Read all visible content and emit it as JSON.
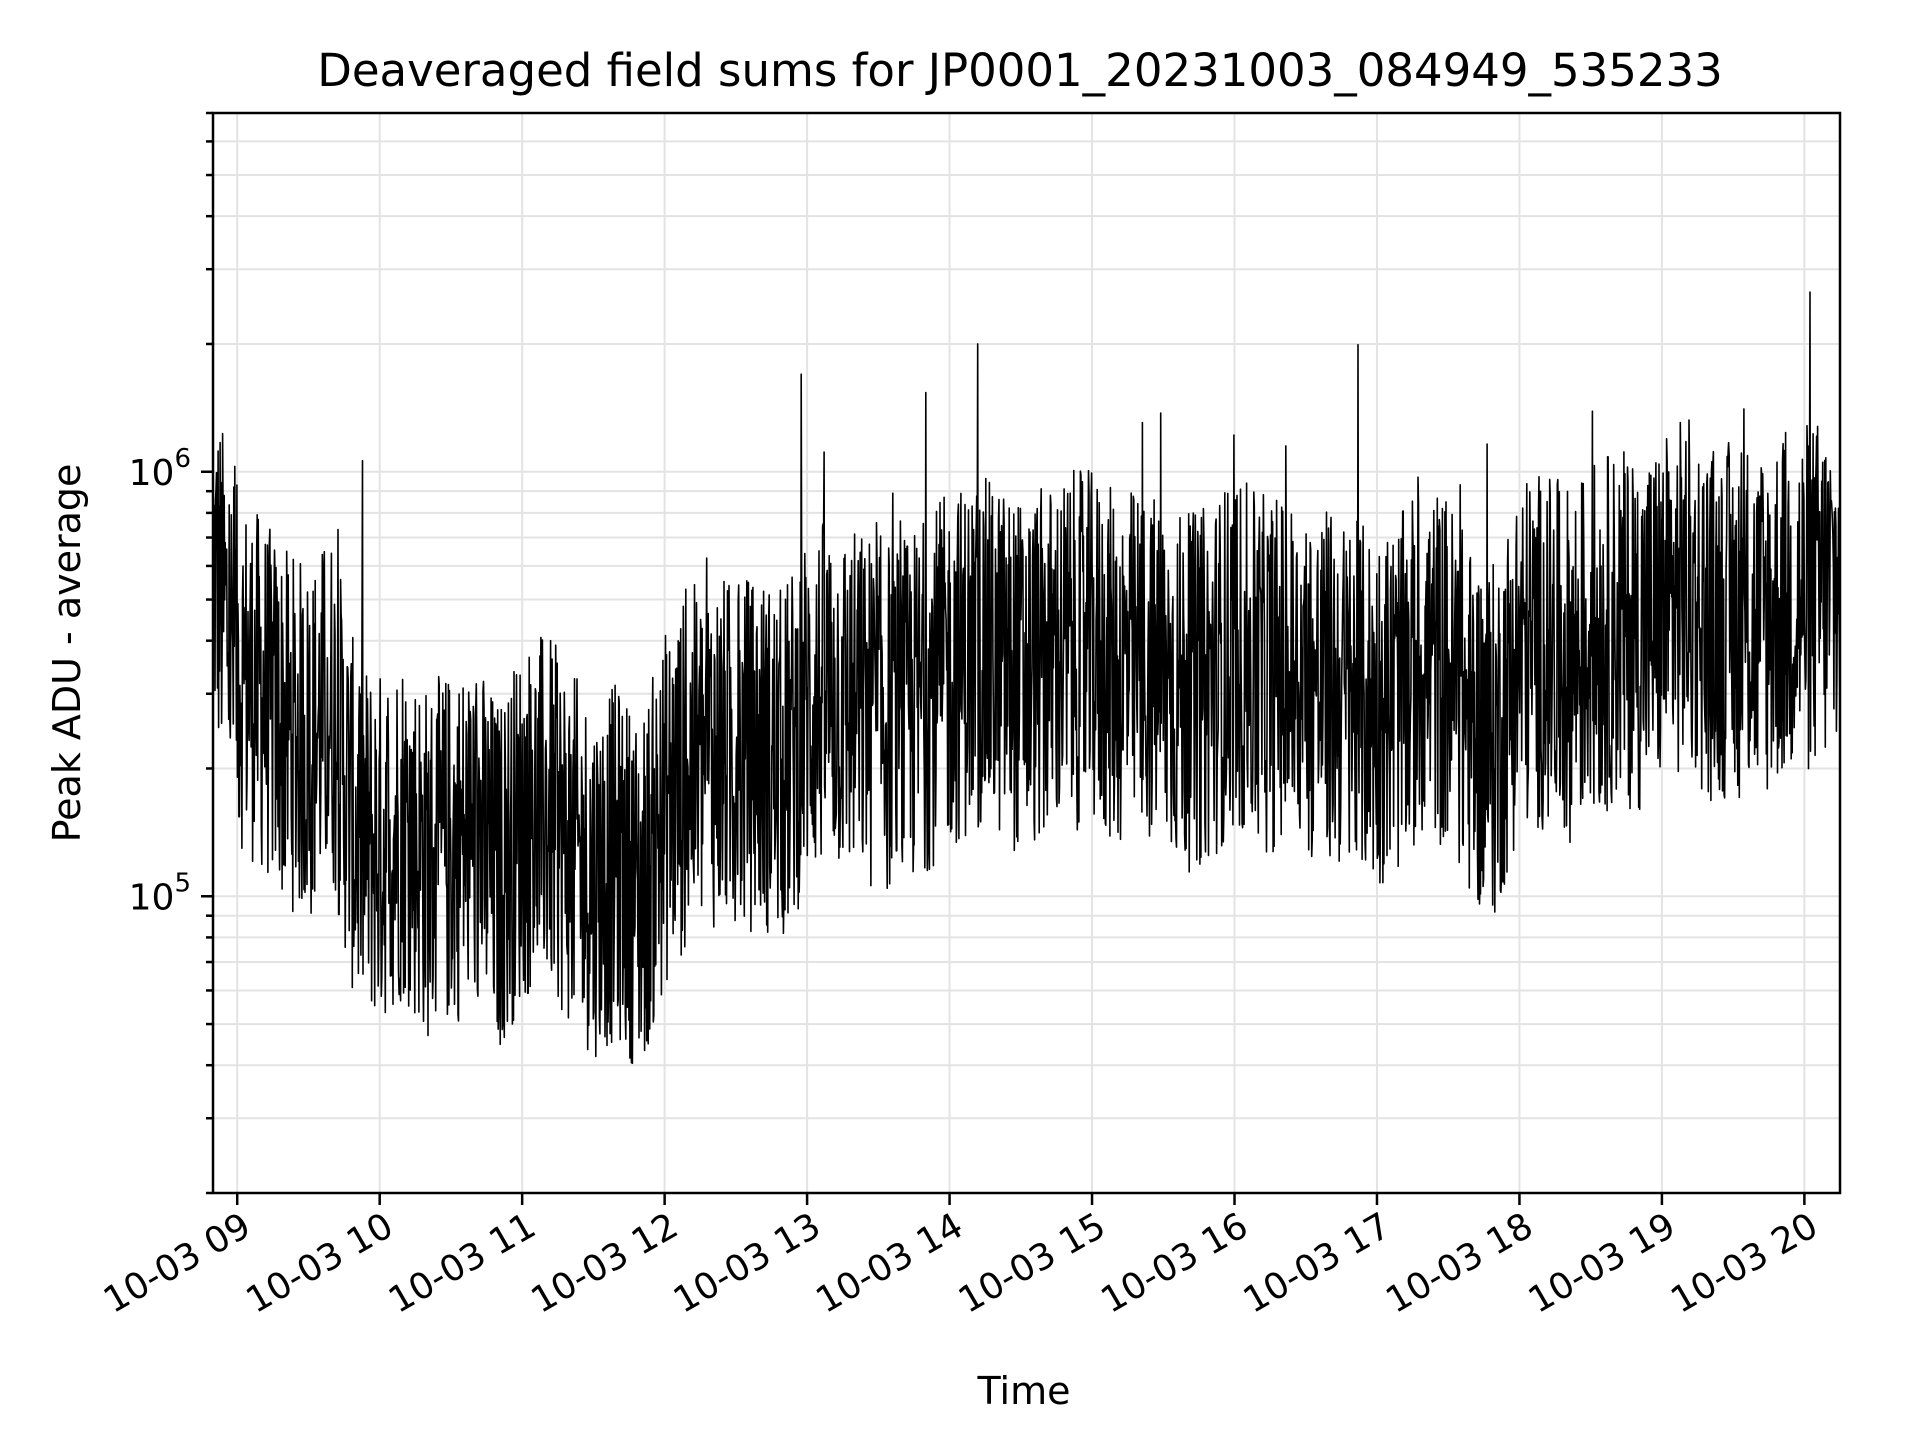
{
  "chart_data": {
    "type": "line",
    "title": "Deaveraged field sums for JP0001_20231003_084949_535233",
    "xlabel": "Time",
    "ylabel": "Peak ADU - average",
    "yscale": "log",
    "ylim": [
      20000,
      7000000
    ],
    "xlim_hours": [
      8.83,
      20.25
    ],
    "x_ticks": [
      "10-03 09",
      "10-03 10",
      "10-03 11",
      "10-03 12",
      "10-03 13",
      "10-03 14",
      "10-03 15",
      "10-03 16",
      "10-03 17",
      "10-03 18",
      "10-03 19",
      "10-03 20"
    ],
    "y_ticks": [
      {
        "value": 100000,
        "base": "10",
        "exp": "5"
      },
      {
        "value": 1000000,
        "base": "10",
        "exp": "6"
      }
    ],
    "grid": true,
    "legend": "none",
    "color": "#000000",
    "series": [
      {
        "x": [
          "08:50",
          "09:00",
          "09:10",
          "09:20",
          "09:30",
          "09:40",
          "09:50",
          "10:00",
          "10:10",
          "10:20",
          "10:30",
          "10:40",
          "10:50",
          "11:00",
          "11:10",
          "11:20",
          "11:30",
          "11:40",
          "11:50",
          "12:00",
          "12:10",
          "12:20",
          "12:30",
          "12:40",
          "12:50",
          "13:00",
          "13:10",
          "13:20",
          "13:30",
          "13:40",
          "13:50",
          "14:00",
          "14:10",
          "14:20",
          "14:30",
          "14:40",
          "14:50",
          "15:00",
          "15:10",
          "15:20",
          "15:30",
          "15:40",
          "15:50",
          "16:00",
          "16:10",
          "16:20",
          "16:30",
          "16:40",
          "16:50",
          "17:00",
          "17:10",
          "17:20",
          "17:30",
          "17:40",
          "17:50",
          "18:00",
          "18:10",
          "18:20",
          "18:30",
          "18:40",
          "18:50",
          "19:00",
          "19:10",
          "19:20",
          "19:30",
          "19:40",
          "19:50",
          "20:00",
          "20:10",
          "20:15"
        ],
        "y": [
          600000,
          350000,
          300000,
          250000,
          230000,
          280000,
          140000,
          130000,
          150000,
          120000,
          130000,
          140000,
          110000,
          150000,
          160000,
          130000,
          110000,
          120000,
          100000,
          160000,
          200000,
          220000,
          210000,
          220000,
          200000,
          280000,
          300000,
          280000,
          270000,
          260000,
          300000,
          340000,
          370000,
          360000,
          330000,
          350000,
          380000,
          380000,
          340000,
          350000,
          330000,
          300000,
          320000,
          380000,
          330000,
          340000,
          320000,
          310000,
          290000,
          280000,
          300000,
          360000,
          340000,
          250000,
          230000,
          380000,
          380000,
          350000,
          400000,
          430000,
          420000,
          460000,
          520000,
          440000,
          450000,
          430000,
          480000,
          500000,
          520000,
          530000
        ]
      }
    ]
  }
}
